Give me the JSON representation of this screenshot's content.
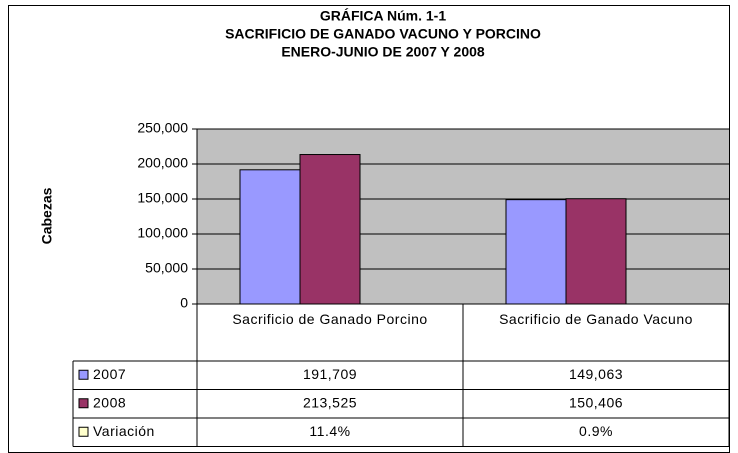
{
  "chart_data": {
    "type": "bar",
    "title": "GRÁFICA Núm. 1-1",
    "subtitle": [
      "SACRIFICIO DE GANADO VACUNO Y PORCINO",
      "ENERO-JUNIO DE 2007 Y 2008"
    ],
    "y_label": "Cabezas",
    "categories": [
      "Sacrificio de Ganado Porcino",
      "Sacrificio de Ganado Vacuno"
    ],
    "series": [
      {
        "name": "2007",
        "color": "#9999ff",
        "values": [
          191709,
          149063
        ],
        "value_labels": [
          "191,709",
          "149,063"
        ]
      },
      {
        "name": "2008",
        "color": "#993366",
        "values": [
          213525,
          150406
        ],
        "value_labels": [
          "213,525",
          "150,406"
        ]
      },
      {
        "name": "Variación",
        "color": "#ffffcc",
        "values": [
          11.4,
          0.9
        ],
        "value_labels": [
          "11.4%",
          "0.9%"
        ]
      }
    ],
    "ylim": [
      0,
      250000
    ],
    "yticks": [
      0,
      {
        "value": 50000,
        "label": "50,000"
      },
      {
        "value": 100000,
        "label": "100,000"
      },
      {
        "value": 150000,
        "label": "150,000"
      },
      {
        "value": 200000,
        "label": "200,000"
      },
      {
        "value": 250000,
        "label": "250,000"
      }
    ],
    "grid": true,
    "plot_background": "#c0c0c0",
    "data_table": true
  }
}
